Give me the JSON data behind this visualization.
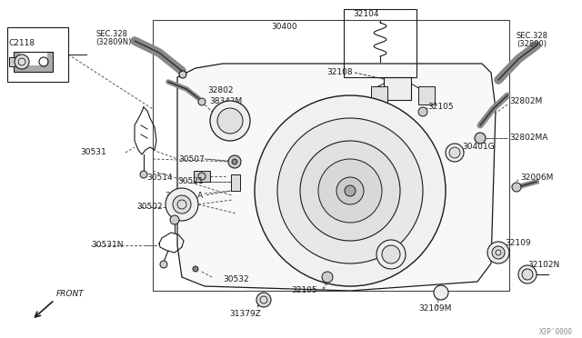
{
  "bg_color": "#ffffff",
  "line_color": "#1a1a1a",
  "text_color": "#1a1a1a",
  "watermark": "X3P'0000",
  "figsize": [
    6.4,
    3.72
  ],
  "dpi": 100,
  "xlim": [
    0,
    640
  ],
  "ylim": [
    0,
    372
  ]
}
